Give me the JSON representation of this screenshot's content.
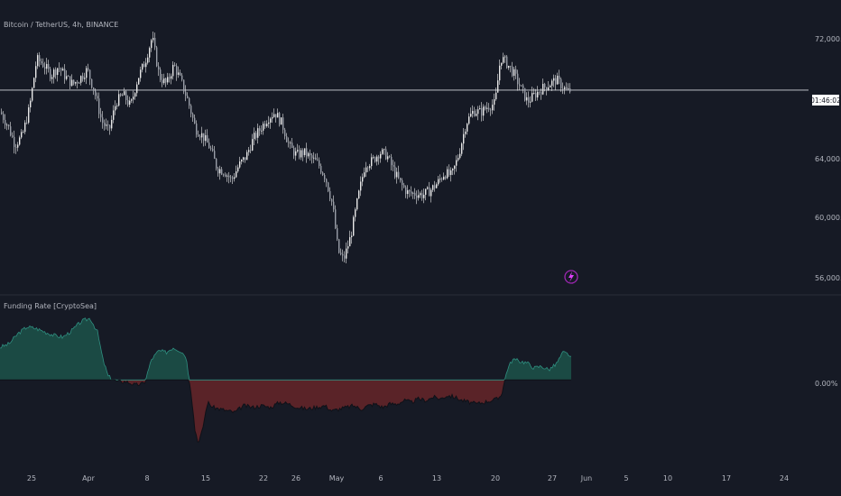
{
  "header": {
    "symbol_title": "Bitcoin / TetherUS, 4h, BINANCE"
  },
  "price_pane": {
    "current_price_label": "01:46:02",
    "price_axis_labels": [
      "72,000.00",
      "64,000.00",
      "60,000.00",
      "56,000.00"
    ]
  },
  "indicator_pane": {
    "title": "Funding Rate [CryptoSea]",
    "zero_label": "0.00%"
  },
  "time_axis": {
    "labels": [
      "25",
      "Apr",
      "8",
      "15",
      "22",
      "26",
      "May",
      "6",
      "13",
      "20",
      "27",
      "Jun",
      "5",
      "10",
      "17",
      "24"
    ]
  },
  "colors": {
    "background": "#161a25",
    "candle": "#e8e8e8",
    "positive_fill": "#1b4a44",
    "positive_line": "#2f8f80",
    "negative_fill": "#5a2328",
    "negative_line": "#c0404a",
    "axis_text": "#b2b5be",
    "event_icon": "#9c27b0"
  },
  "chart_data": [
    {
      "type": "candlestick",
      "title": "Bitcoin / TetherUS, 4h, BINANCE",
      "ylim": [
        54800,
        73600
      ],
      "y_ticks": [
        56000,
        60000,
        64000,
        72000
      ],
      "current_price": 68600,
      "close_path": [
        [
          0,
          67100
        ],
        [
          8,
          66200
        ],
        [
          16,
          64900
        ],
        [
          24,
          65500
        ],
        [
          32,
          67400
        ],
        [
          40,
          70700
        ],
        [
          48,
          70300
        ],
        [
          56,
          69600
        ],
        [
          64,
          70200
        ],
        [
          72,
          69500
        ],
        [
          80,
          69000
        ],
        [
          88,
          69400
        ],
        [
          96,
          70000
        ],
        [
          104,
          68500
        ],
        [
          112,
          66500
        ],
        [
          120,
          65800
        ],
        [
          128,
          67800
        ],
        [
          136,
          68300
        ],
        [
          144,
          67500
        ],
        [
          152,
          69400
        ],
        [
          160,
          70500
        ],
        [
          168,
          72200
        ],
        [
          176,
          69500
        ],
        [
          184,
          69000
        ],
        [
          192,
          70300
        ],
        [
          200,
          69200
        ],
        [
          208,
          67800
        ],
        [
          216,
          66000
        ],
        [
          224,
          65500
        ],
        [
          232,
          64700
        ],
        [
          240,
          63300
        ],
        [
          248,
          63100
        ],
        [
          256,
          62500
        ],
        [
          264,
          63500
        ],
        [
          272,
          64100
        ],
        [
          280,
          65300
        ],
        [
          288,
          66000
        ],
        [
          296,
          66700
        ],
        [
          304,
          67100
        ],
        [
          312,
          66300
        ],
        [
          320,
          64800
        ],
        [
          328,
          64200
        ],
        [
          336,
          64400
        ],
        [
          344,
          64000
        ],
        [
          352,
          63600
        ],
        [
          360,
          62700
        ],
        [
          368,
          60800
        ],
        [
          374,
          57700
        ],
        [
          380,
          57100
        ],
        [
          388,
          58700
        ],
        [
          396,
          61300
        ],
        [
          404,
          63600
        ],
        [
          412,
          63800
        ],
        [
          420,
          64400
        ],
        [
          428,
          64200
        ],
        [
          436,
          63100
        ],
        [
          444,
          62200
        ],
        [
          452,
          61600
        ],
        [
          460,
          61600
        ],
        [
          468,
          61500
        ],
        [
          476,
          61800
        ],
        [
          484,
          62300
        ],
        [
          492,
          63000
        ],
        [
          500,
          62800
        ],
        [
          508,
          64300
        ],
        [
          516,
          66400
        ],
        [
          524,
          67200
        ],
        [
          532,
          67100
        ],
        [
          540,
          67500
        ],
        [
          548,
          67700
        ],
        [
          554,
          70800
        ],
        [
          560,
          70500
        ],
        [
          568,
          69800
        ],
        [
          576,
          68800
        ],
        [
          584,
          67800
        ],
        [
          592,
          68300
        ],
        [
          600,
          68700
        ],
        [
          608,
          69000
        ],
        [
          616,
          69300
        ],
        [
          622,
          68900
        ],
        [
          628,
          68500
        ],
        [
          632,
          68600
        ]
      ],
      "event_marker": "lightning-icon"
    },
    {
      "type": "area",
      "title": "Funding Rate [CryptoSea]",
      "ylim": [
        -0.022,
        0.024
      ],
      "zero_label": "0.00%",
      "series": [
        {
          "values": [
            [
              0,
              0.0095
            ],
            [
              10,
              0.0105
            ],
            [
              20,
              0.0135
            ],
            [
              30,
              0.0155
            ],
            [
              40,
              0.015
            ],
            [
              50,
              0.014
            ],
            [
              60,
              0.013
            ],
            [
              70,
              0.0125
            ],
            [
              80,
              0.0145
            ],
            [
              90,
              0.017
            ],
            [
              100,
              0.018
            ],
            [
              108,
              0.014
            ],
            [
              114,
              0.006
            ],
            [
              120,
              0.001
            ],
            [
              130,
              -0.0005
            ],
            [
              140,
              -0.0005
            ],
            [
              150,
              -0.0015
            ],
            [
              160,
              -0.001
            ],
            [
              168,
              0.006
            ],
            [
              176,
              0.0085
            ],
            [
              184,
              0.008
            ],
            [
              192,
              0.0095
            ],
            [
              200,
              0.0085
            ],
            [
              206,
              0.007
            ],
            [
              212,
              -0.004
            ],
            [
              216,
              -0.0145
            ],
            [
              220,
              -0.0185
            ],
            [
              224,
              -0.015
            ],
            [
              230,
              -0.0065
            ],
            [
              236,
              -0.008
            ],
            [
              244,
              -0.0085
            ],
            [
              252,
              -0.009
            ],
            [
              260,
              -0.0095
            ],
            [
              270,
              -0.0075
            ],
            [
              280,
              -0.008
            ],
            [
              290,
              -0.0075
            ],
            [
              300,
              -0.008
            ],
            [
              310,
              -0.0065
            ],
            [
              320,
              -0.007
            ],
            [
              330,
              -0.008
            ],
            [
              340,
              -0.0085
            ],
            [
              350,
              -0.008
            ],
            [
              360,
              -0.0075
            ],
            [
              368,
              -0.009
            ],
            [
              376,
              -0.0085
            ],
            [
              384,
              -0.008
            ],
            [
              392,
              -0.0075
            ],
            [
              400,
              -0.0085
            ],
            [
              408,
              -0.0075
            ],
            [
              416,
              -0.007
            ],
            [
              424,
              -0.008
            ],
            [
              432,
              -0.007
            ],
            [
              440,
              -0.007
            ],
            [
              448,
              -0.006
            ],
            [
              456,
              -0.0065
            ],
            [
              464,
              -0.0055
            ],
            [
              472,
              -0.006
            ],
            [
              480,
              -0.005
            ],
            [
              488,
              -0.0055
            ],
            [
              496,
              -0.0045
            ],
            [
              504,
              -0.005
            ],
            [
              512,
              -0.006
            ],
            [
              520,
              -0.0065
            ],
            [
              528,
              -0.007
            ],
            [
              536,
              -0.0065
            ],
            [
              544,
              -0.006
            ],
            [
              552,
              -0.0055
            ],
            [
              556,
              -0.004
            ],
            [
              562,
              0.003
            ],
            [
              568,
              0.006
            ],
            [
              576,
              0.0055
            ],
            [
              584,
              0.005
            ],
            [
              592,
              0.0035
            ],
            [
              600,
              0.004
            ],
            [
              608,
              0.003
            ],
            [
              616,
              0.0045
            ],
            [
              624,
              0.008
            ],
            [
              630,
              0.0075
            ],
            [
              634,
              0.006
            ]
          ]
        }
      ]
    }
  ]
}
